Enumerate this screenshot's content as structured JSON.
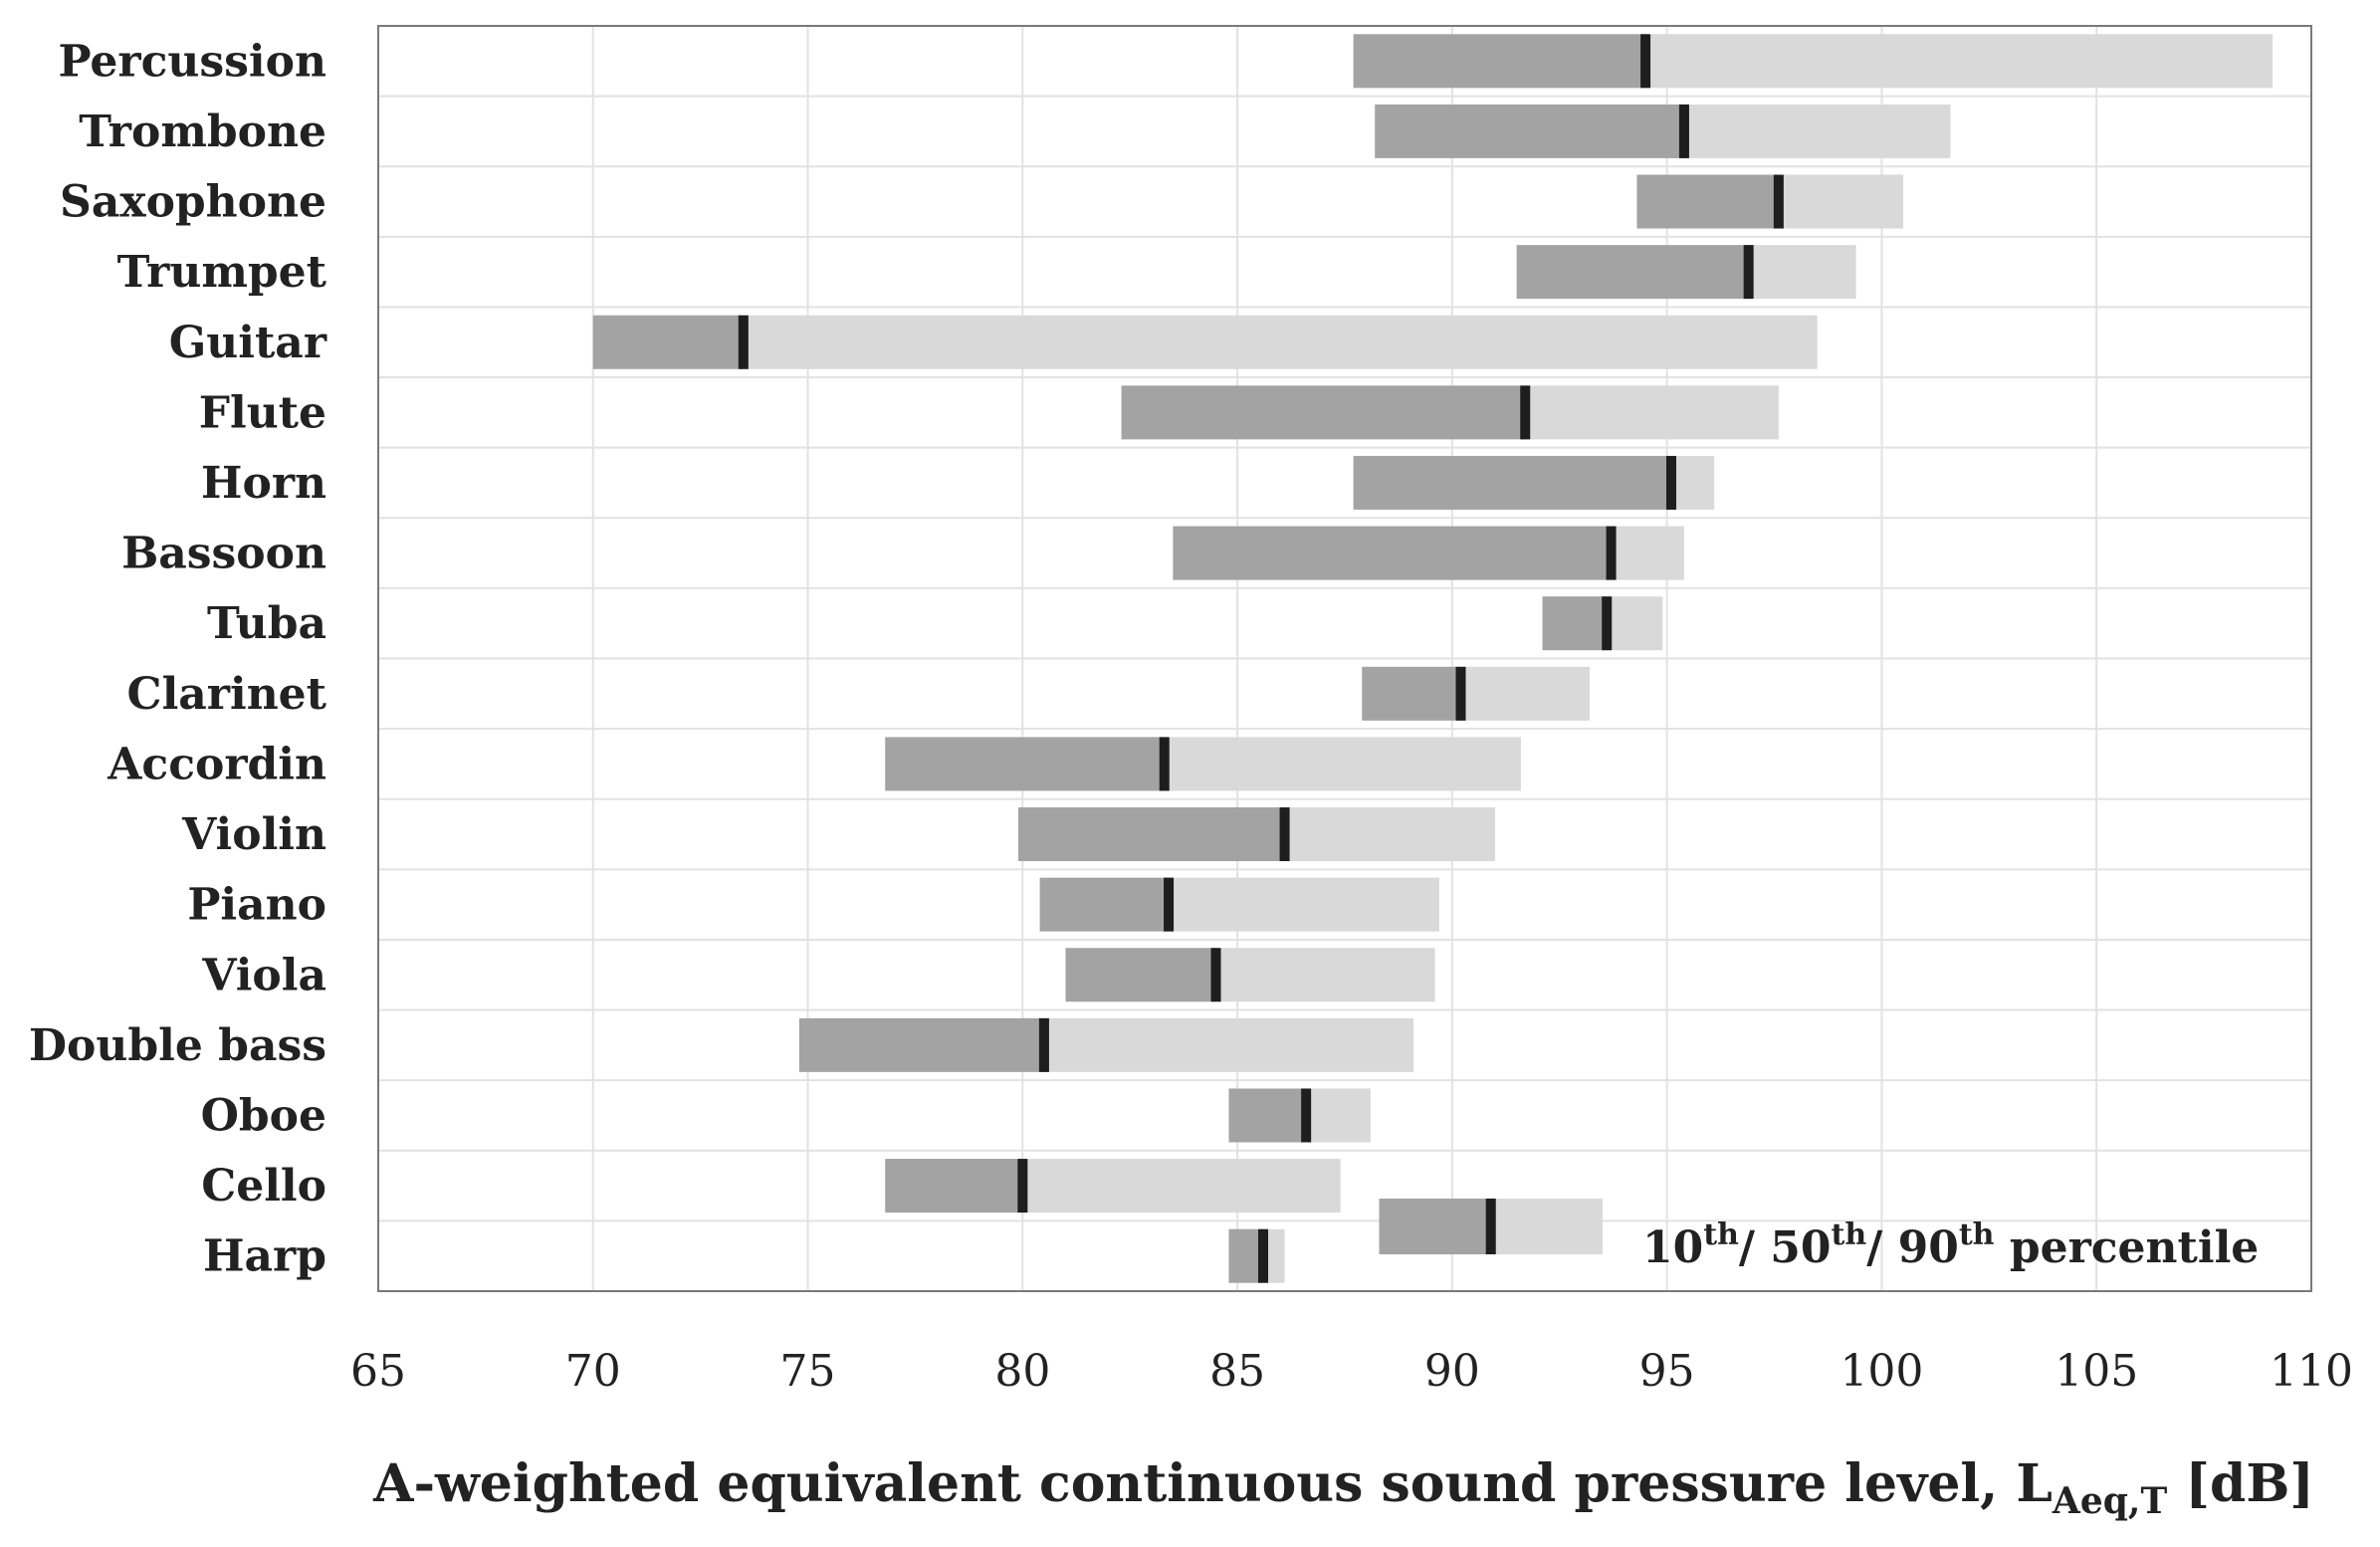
{
  "chart_data": {
    "type": "bar",
    "subtype": "percentile-range",
    "title": "",
    "xlabel_main": "A-weighted equivalent continuous sound pressure level, L",
    "xlabel_sub": "Aeq,T",
    "xlabel_unit": " [dB]",
    "xlim": [
      65,
      110
    ],
    "xticks": [
      "65",
      "70",
      "75",
      "80",
      "85",
      "90",
      "95",
      "100",
      "105",
      "110"
    ],
    "grid": true,
    "categories": [
      "Percussion",
      "Trombone",
      "Saxophone",
      "Trumpet",
      "Guitar",
      "Flute",
      "Horn",
      "Bassoon",
      "Tuba",
      "Clarinet",
      "Accordin",
      "Violin",
      "Piano",
      "Viola",
      "Double bass",
      "Oboe",
      "Cello",
      "Harp"
    ],
    "p10": [
      87.7,
      88.2,
      94.3,
      91.5,
      70.0,
      82.3,
      87.7,
      83.5,
      92.1,
      87.9,
      76.8,
      79.9,
      80.4,
      81.0,
      74.8,
      84.8,
      76.8,
      84.8
    ],
    "p50": [
      94.5,
      95.4,
      97.6,
      96.9,
      73.5,
      91.7,
      95.1,
      93.7,
      93.6,
      90.2,
      83.3,
      86.1,
      83.4,
      84.5,
      80.5,
      86.6,
      80.0,
      85.6
    ],
    "p90": [
      109.1,
      101.6,
      100.5,
      99.4,
      98.5,
      97.6,
      96.1,
      95.4,
      94.9,
      93.2,
      91.6,
      91.0,
      89.7,
      89.6,
      89.1,
      88.1,
      87.4,
      86.1
    ],
    "colors": {
      "lower": "#a3a3a3",
      "upper": "#d9d9d9",
      "median": "#1e1e1e",
      "grid": "#e2e2e2",
      "axis": "#7a7a7a"
    },
    "legend": {
      "p10": 88.3,
      "p50": 90.9,
      "p90": 93.5,
      "parts": [
        "10",
        "th",
        "/ 50",
        "th",
        "/ 90",
        "th",
        " percentile"
      ],
      "placement": "bottom-right"
    }
  }
}
